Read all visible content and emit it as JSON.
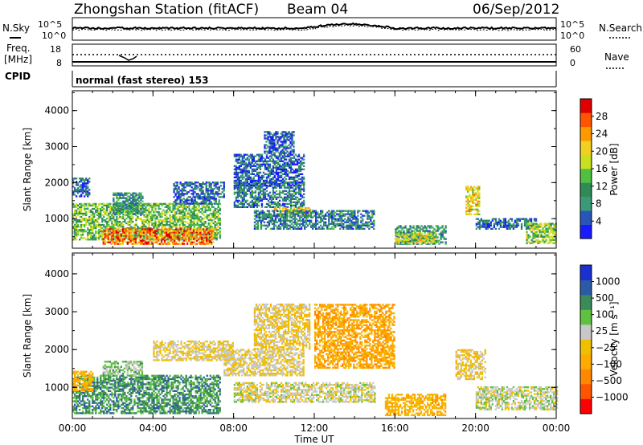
{
  "header": {
    "station": "Zhongshan Station (fitACF)",
    "beam": "Beam 04",
    "date": "06/Sep/2012"
  },
  "top_panels": {
    "nsky_label": "N.Sky",
    "nsky_ticks": [
      "10^5",
      "10^0"
    ],
    "nsearch_label": "N.Search",
    "nsearch_ticks": [
      "10^5",
      "10^0"
    ],
    "freq_label_1": "Freq.",
    "freq_label_2": "[MHz]",
    "freq_ticks": [
      "18",
      "8"
    ],
    "nave_label": "Nave",
    "nave_ticks": [
      "60",
      "0"
    ],
    "cpid_label": "CPID",
    "mode_text": "normal (fast stereo) 153"
  },
  "colors": {
    "power_scale": [
      "#1a1aff",
      "#2856b8",
      "#3a9a78",
      "#2f8a55",
      "#50c040",
      "#c8e020",
      "#f0d020",
      "#ff9900",
      "#ff5500",
      "#e00000"
    ],
    "velocity_scale": [
      "#ff0000",
      "#ff5500",
      "#ff8800",
      "#ffaa00",
      "#f0c000",
      "#c8c8c8",
      "#60c040",
      "#3a8a5a",
      "#2a5aa8",
      "#1a30d0"
    ]
  },
  "chart_data": [
    {
      "type": "heatmap",
      "title": "",
      "xlabel": "",
      "ylabel": "Slant Range [km]",
      "xlim": [
        0,
        24
      ],
      "ylim": [
        180,
        4550
      ],
      "x_ticks": [
        "00:00",
        "04:00",
        "08:00",
        "12:00",
        "16:00",
        "20:00",
        "00:00"
      ],
      "y_ticks": [
        1000,
        2000,
        3000,
        4000
      ],
      "colorbar": {
        "label": "Power [dB]",
        "range": [
          0,
          32
        ],
        "ticks": [
          "28",
          "24",
          "20",
          "16",
          "12",
          "8",
          "4"
        ]
      },
      "regions": [
        {
          "t": [
            0.0,
            7.3
          ],
          "r": [
            400,
            1400
          ],
          "value": 14
        },
        {
          "t": [
            1.5,
            7.0
          ],
          "r": [
            280,
            700
          ],
          "value": 26
        },
        {
          "t": [
            2.0,
            3.5
          ],
          "r": [
            1100,
            1700
          ],
          "value": 10
        },
        {
          "t": [
            0.0,
            0.8
          ],
          "r": [
            1600,
            2100
          ],
          "value": 6
        },
        {
          "t": [
            5.0,
            7.5
          ],
          "r": [
            1400,
            2000
          ],
          "value": 6
        },
        {
          "t": [
            8.0,
            11.5
          ],
          "r": [
            1300,
            2000
          ],
          "value": 8
        },
        {
          "t": [
            8.0,
            11.5
          ],
          "r": [
            1900,
            2800
          ],
          "value": 5
        },
        {
          "t": [
            9.5,
            11.0
          ],
          "r": [
            2800,
            3400
          ],
          "value": 5
        },
        {
          "t": [
            10.0,
            11.8
          ],
          "r": [
            1050,
            1300
          ],
          "value": 20
        },
        {
          "t": [
            9.0,
            15.0
          ],
          "r": [
            700,
            1200
          ],
          "value": 8
        },
        {
          "t": [
            16.0,
            18.5
          ],
          "r": [
            280,
            800
          ],
          "value": 10
        },
        {
          "t": [
            16.0,
            18.0
          ],
          "r": [
            300,
            600
          ],
          "value": 18
        },
        {
          "t": [
            19.5,
            20.2
          ],
          "r": [
            1100,
            1900
          ],
          "value": 20
        },
        {
          "t": [
            20.0,
            23.0
          ],
          "r": [
            700,
            1000
          ],
          "value": 6
        },
        {
          "t": [
            22.5,
            24.0
          ],
          "r": [
            300,
            850
          ],
          "value": 16
        }
      ]
    },
    {
      "type": "heatmap",
      "title": "",
      "xlabel": "Time UT",
      "ylabel": "Slant Range [km]",
      "xlim": [
        0,
        24
      ],
      "ylim": [
        180,
        4550
      ],
      "x_ticks": [
        "00:00",
        "04:00",
        "08:00",
        "12:00",
        "16:00",
        "20:00",
        "00:00"
      ],
      "y_ticks": [
        1000,
        2000,
        3000,
        4000
      ],
      "colorbar": {
        "label": "Velocity [m s⁻¹]",
        "range": [
          -1250,
          1250
        ],
        "ticks": [
          "1000",
          "500",
          "100",
          "25",
          "−25",
          "−100",
          "−500",
          "−1000"
        ]
      },
      "regions": [
        {
          "t": [
            0.0,
            7.3
          ],
          "r": [
            300,
            1300
          ],
          "value": 600
        },
        {
          "t": [
            1.5,
            3.5
          ],
          "r": [
            1300,
            1700
          ],
          "value": 300
        },
        {
          "t": [
            0.0,
            1.0
          ],
          "r": [
            900,
            1400
          ],
          "value": -300
        },
        {
          "t": [
            4.0,
            8.0
          ],
          "r": [
            1700,
            2200
          ],
          "value": 0
        },
        {
          "t": [
            7.5,
            11.5
          ],
          "r": [
            1300,
            2000
          ],
          "value": 0
        },
        {
          "t": [
            9.0,
            11.8
          ],
          "r": [
            2000,
            3200
          ],
          "value": -50
        },
        {
          "t": [
            8.0,
            15.0
          ],
          "r": [
            600,
            1100
          ],
          "value": 80
        },
        {
          "t": [
            12.0,
            16.0
          ],
          "r": [
            1500,
            3200
          ],
          "value": -400
        },
        {
          "t": [
            15.5,
            18.5
          ],
          "r": [
            250,
            800
          ],
          "value": -300
        },
        {
          "t": [
            19.0,
            20.5
          ],
          "r": [
            1200,
            2000
          ],
          "value": -80
        },
        {
          "t": [
            20.0,
            24.0
          ],
          "r": [
            400,
            1000
          ],
          "value": 150
        }
      ]
    }
  ],
  "footer": {
    "time_label": "Time UT"
  }
}
